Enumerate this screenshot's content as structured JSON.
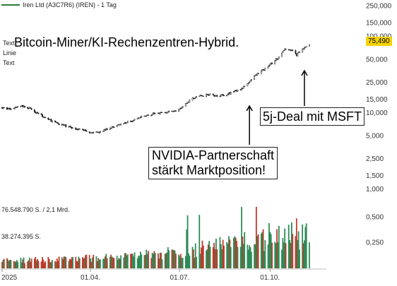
{
  "chart_data": {
    "type": "candlestick",
    "title": "Iren Ltd (A3C7R6) (IREN) - 1 Tag",
    "series_name": "Iren Ltd (A3C7R6) (IREN) - 1 Tag",
    "y_scale": "log",
    "y_ticks": [
      {
        "value": 250000,
        "label": "250,000"
      },
      {
        "value": 150000,
        "label": "150,000"
      },
      {
        "value": 100000,
        "label": "100,000"
      },
      {
        "value": 50000,
        "label": "50,000"
      },
      {
        "value": 25000,
        "label": "25,000"
      },
      {
        "value": 15000,
        "label": "15,000"
      },
      {
        "value": 10000,
        "label": "10,000"
      },
      {
        "value": 5000,
        "label": "5,000"
      },
      {
        "value": 2500,
        "label": "2,500"
      },
      {
        "value": 1500,
        "label": "1,500"
      },
      {
        "value": 1000,
        "label": "1,000"
      }
    ],
    "x_ticks": [
      "2025",
      "01.04.",
      "01.07.",
      "01.10."
    ],
    "last_price": "75,490",
    "price_path": [
      {
        "x": "2025-01-01",
        "y": 11800
      },
      {
        "x": "2025-01-10",
        "y": 11200
      },
      {
        "x": "2025-01-20",
        "y": 12400
      },
      {
        "x": "2025-01-28",
        "y": 11600
      },
      {
        "x": "2025-02-06",
        "y": 10000
      },
      {
        "x": "2025-02-15",
        "y": 8500
      },
      {
        "x": "2025-02-25",
        "y": 7400
      },
      {
        "x": "2025-03-06",
        "y": 6800
      },
      {
        "x": "2025-03-15",
        "y": 6300
      },
      {
        "x": "2025-03-25",
        "y": 6000
      },
      {
        "x": "2025-04-03",
        "y": 5500
      },
      {
        "x": "2025-04-12",
        "y": 5800
      },
      {
        "x": "2025-04-22",
        "y": 6400
      },
      {
        "x": "2025-05-01",
        "y": 7100
      },
      {
        "x": "2025-05-10",
        "y": 7700
      },
      {
        "x": "2025-05-20",
        "y": 8600
      },
      {
        "x": "2025-05-30",
        "y": 9400
      },
      {
        "x": "2025-06-08",
        "y": 10000
      },
      {
        "x": "2025-06-18",
        "y": 10200
      },
      {
        "x": "2025-06-28",
        "y": 10600
      },
      {
        "x": "2025-07-05",
        "y": 12500
      },
      {
        "x": "2025-07-12",
        "y": 15000
      },
      {
        "x": "2025-07-20",
        "y": 16500
      },
      {
        "x": "2025-07-30",
        "y": 17500
      },
      {
        "x": "2025-08-08",
        "y": 16800
      },
      {
        "x": "2025-08-18",
        "y": 17600
      },
      {
        "x": "2025-08-27",
        "y": 19500
      },
      {
        "x": "2025-09-05",
        "y": 22000
      },
      {
        "x": "2025-09-12",
        "y": 27500
      },
      {
        "x": "2025-09-20",
        "y": 34000
      },
      {
        "x": "2025-09-28",
        "y": 40000
      },
      {
        "x": "2025-10-05",
        "y": 47000
      },
      {
        "x": "2025-10-12",
        "y": 58000
      },
      {
        "x": "2025-10-18",
        "y": 72000
      },
      {
        "x": "2025-10-23",
        "y": 66000
      },
      {
        "x": "2025-10-28",
        "y": 57000
      },
      {
        "x": "2025-11-01",
        "y": 64000
      },
      {
        "x": "2025-11-05",
        "y": 72000
      },
      {
        "x": "2025-11-10",
        "y": 75490
      }
    ],
    "volume_ticks": [
      {
        "value": 0.5,
        "label": "0,500"
      },
      {
        "value": 0.25,
        "label": "0,250"
      }
    ],
    "volume_labels": [
      "76.548.790 S. / 2,1 Mrd.",
      "38.274.395 S."
    ],
    "volume_ylim": [
      0,
      0.62
    ],
    "colors": {
      "price_up": "#1f1f1f",
      "price_down": "#1f1f1f",
      "volume_up": "#2e8b57",
      "volume_down": "#c0392b",
      "last_price_bg": "#f5d200",
      "legend_line": "#2e7d32"
    },
    "annotations": [
      {
        "text": "Bitcoin-Miner/KI-Rechenzentren-Hybrid."
      },
      {
        "text": "NVIDIA-Partnerschaft stärkt Marktposition!",
        "lines": [
          "NVIDIA-Partnerschaft",
          "stärkt Marktposition!"
        ],
        "arrow_to": "2025-09-10"
      },
      {
        "text": "5j-Deal mit MSFT",
        "arrow_to": "2025-11-05"
      }
    ]
  },
  "overlay_labels": [
    "Text",
    "Linie",
    "Text"
  ]
}
